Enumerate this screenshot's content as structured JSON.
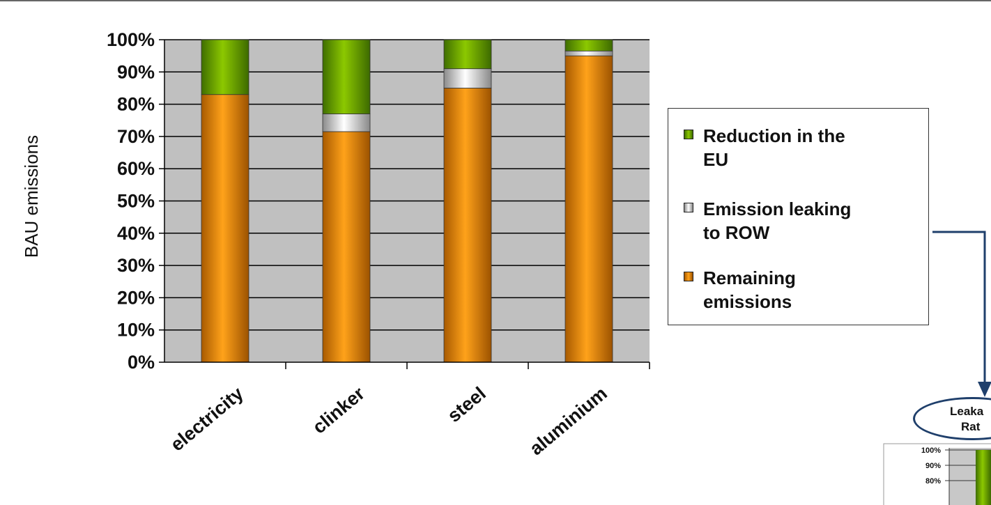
{
  "chart_data": {
    "type": "bar",
    "stacked": true,
    "categories": [
      "electricity",
      "clinker",
      "steel",
      "aluminium"
    ],
    "series": [
      {
        "name": "Remaining emissions",
        "values": [
          83,
          71.5,
          85,
          95
        ],
        "color": "#ff9900"
      },
      {
        "name": "Emission leaking to ROW",
        "values": [
          0,
          5.5,
          6,
          1.5
        ],
        "color": "#d8d8d8"
      },
      {
        "name": "Reduction in the EU",
        "values": [
          17,
          23,
          9,
          3.5
        ],
        "color": "#7fba00"
      }
    ],
    "ylabel": "BAU emissions",
    "ylim": [
      0,
      100
    ],
    "yticks": [
      "0%",
      "10%",
      "20%",
      "30%",
      "40%",
      "50%",
      "60%",
      "70%",
      "80%",
      "90%",
      "100%"
    ],
    "grid": true,
    "legend_position": "right"
  },
  "legend": {
    "items": [
      {
        "lines": [
          "Reduction in the",
          "EU"
        ],
        "color": "#7fba00"
      },
      {
        "lines": [
          "Emission leaking",
          "to ROW"
        ],
        "color": "#d8d8d8"
      },
      {
        "lines": [
          "Remaining",
          "emissions"
        ],
        "color": "#ff9900"
      }
    ]
  },
  "callout": {
    "line1": "Leaka",
    "line2": "Rat"
  },
  "inset": {
    "yticks": [
      "100%",
      "90%",
      "80%"
    ]
  },
  "colors": {
    "plot_bg": "#c0c0c0",
    "arrow": "#1f3f6b"
  }
}
